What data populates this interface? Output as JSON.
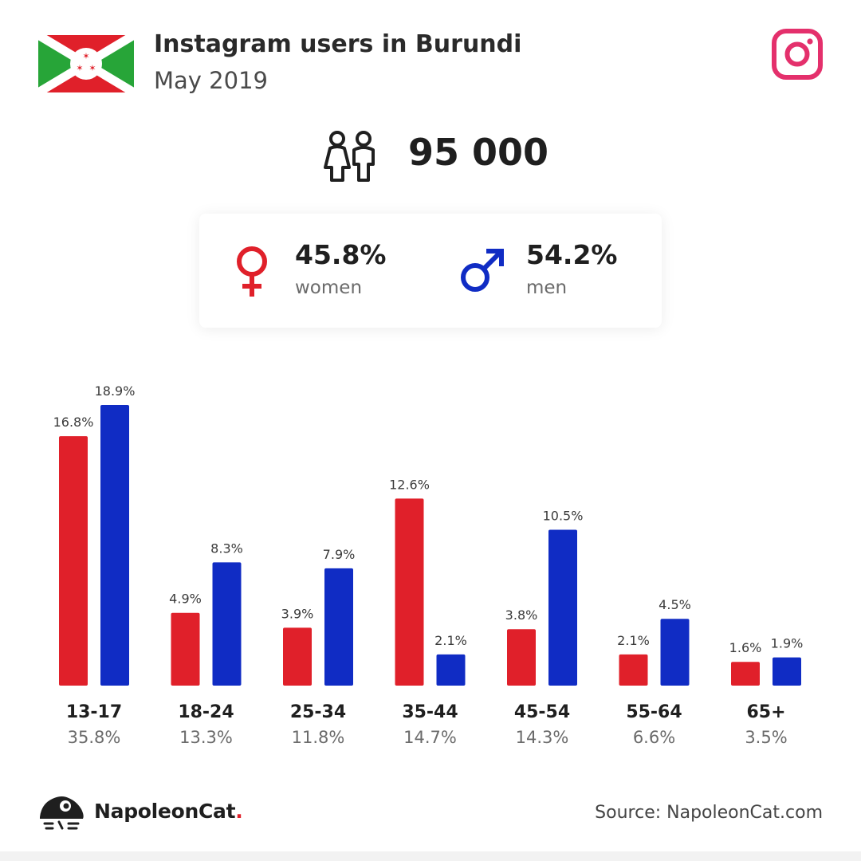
{
  "header": {
    "title": "Instagram users in Burundi",
    "subtitle": "May 2019"
  },
  "total_users": "95 000",
  "gender": {
    "women": {
      "percent": "45.8%",
      "label": "women",
      "color": "#e0202a"
    },
    "men": {
      "percent": "54.2%",
      "label": "men",
      "color": "#102cc4"
    }
  },
  "icons": {
    "flag": "burundi-flag-icon",
    "instagram": "instagram-icon",
    "people": "people-icon",
    "female": "female-symbol-icon",
    "male": "male-symbol-icon",
    "logo": "napoleoncat-logo-icon"
  },
  "chart_data": {
    "type": "bar",
    "categories": [
      "13-17",
      "18-24",
      "25-34",
      "35-44",
      "45-54",
      "55-64",
      "65+"
    ],
    "category_totals": [
      "35.8%",
      "13.3%",
      "11.8%",
      "14.7%",
      "14.3%",
      "6.6%",
      "3.5%"
    ],
    "series": [
      {
        "name": "women",
        "color": "#e0202a",
        "values": [
          16.8,
          4.9,
          3.9,
          12.6,
          3.8,
          2.1,
          1.6
        ]
      },
      {
        "name": "men",
        "color": "#102cc4",
        "values": [
          18.9,
          8.3,
          7.9,
          2.1,
          10.5,
          4.5,
          1.9
        ]
      }
    ],
    "value_suffix": "%",
    "ylim": [
      0,
      18.9
    ],
    "grid": false
  },
  "footer": {
    "brand": "NapoleonCat",
    "brand_dot": ".",
    "source": "Source: NapoleonCat.com"
  }
}
